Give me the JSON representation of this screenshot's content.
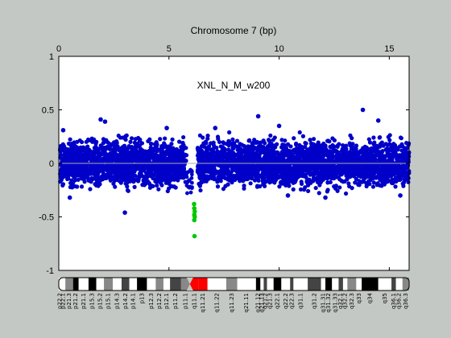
{
  "chart_data": {
    "type": "scatter",
    "title": "",
    "xlabel": "Chromosome 7 (bp)",
    "ylabel": "",
    "annotation": "XNL_N_M_w200",
    "xlim": [
      0,
      15.9
    ],
    "ylim": [
      -1,
      1
    ],
    "x_ticks": [
      0,
      5,
      10,
      15
    ],
    "y_ticks": [
      1,
      0.5,
      0,
      -0.5,
      -1
    ],
    "y_tick_labels": [
      "1",
      "0.5",
      "0",
      "-0.5",
      "-1"
    ],
    "grid": false,
    "reference_line_y": 0,
    "series": [
      {
        "color": "#0000c8",
        "envelope": {
          "x": [
            0.05,
            5.8,
            6.05,
            6.3,
            15.9
          ],
          "upper": 0.25,
          "lower": -0.25
        },
        "outliers": [
          {
            "x": 0.2,
            "y": 0.31
          },
          {
            "x": 1.9,
            "y": 0.41
          },
          {
            "x": 2.1,
            "y": 0.39
          },
          {
            "x": 3.0,
            "y": -0.46
          },
          {
            "x": 4.9,
            "y": 0.33
          },
          {
            "x": 0.5,
            "y": -0.32
          },
          {
            "x": 9.05,
            "y": 0.44
          },
          {
            "x": 10.0,
            "y": 0.35
          },
          {
            "x": 12.1,
            "y": -0.32
          },
          {
            "x": 13.8,
            "y": 0.5
          },
          {
            "x": 14.5,
            "y": 0.4
          },
          {
            "x": 15.5,
            "y": -0.3
          },
          {
            "x": 10.4,
            "y": -0.3
          },
          {
            "x": 7.1,
            "y": 0.33
          }
        ]
      },
      {
        "color": "#00c800",
        "points": [
          {
            "x": 6.15,
            "y": -0.42
          },
          {
            "x": 6.17,
            "y": -0.45
          },
          {
            "x": 6.15,
            "y": -0.48
          },
          {
            "x": 6.17,
            "y": -0.5
          },
          {
            "x": 6.15,
            "y": -0.53
          },
          {
            "x": 6.16,
            "y": -0.68
          },
          {
            "x": 6.14,
            "y": -0.38
          }
        ]
      }
    ],
    "ideogram": {
      "centromere_x": 5.95,
      "bands": [
        "p22.2",
        "p22.1",
        "p21.3",
        "p21.2",
        "p21.1",
        "p15.3",
        "p15.2",
        "p15.1",
        "p14.3",
        "p14.2",
        "p14.1",
        "p13",
        "p12.3",
        "p12.2",
        "p12.1",
        "p11.2",
        "p11.1",
        "q11.1",
        "q11.21",
        "q11.22",
        "q11.23",
        "q21.11",
        "q21.12",
        "q21.13",
        "q21.2",
        "q21.3",
        "q22.1",
        "q22.2",
        "q22.3",
        "q31.1",
        "q31.2",
        "q31.31",
        "q31.32",
        "q31.33",
        "q32.1",
        "q32.2",
        "q32.3",
        "q33",
        "q34",
        "q35",
        "q36.1",
        "q36.2",
        "q36.3"
      ],
      "band_boundaries": [
        0,
        0.1,
        0.3,
        0.65,
        0.9,
        1.35,
        1.7,
        2.05,
        2.45,
        2.85,
        3.2,
        3.55,
        4.0,
        4.4,
        4.75,
        5.05,
        5.55,
        5.95,
        6.35,
        6.75,
        7.6,
        8.1,
        8.95,
        9.15,
        9.3,
        9.45,
        9.75,
        10.1,
        10.5,
        10.65,
        11.3,
        11.9,
        12.1,
        12.4,
        12.7,
        12.9,
        13.1,
        13.5,
        13.75,
        14.5,
        15.1,
        15.3,
        15.6,
        15.9
      ],
      "band_shades": [
        "white",
        "white",
        "#888",
        "#000",
        "white",
        "#000",
        "white",
        "#888",
        "white",
        "#444",
        "white",
        "#000",
        "white",
        "#888",
        "white",
        "#444",
        "#888",
        "red",
        "red",
        "white",
        "#888",
        "white",
        "#000",
        "white",
        "#444",
        "white",
        "#000",
        "white",
        "#444",
        "white",
        "#444",
        "white",
        "#000",
        "white",
        "#444",
        "white",
        "#888",
        "white",
        "#000",
        "white",
        "#444",
        "white",
        "#888"
      ]
    }
  }
}
